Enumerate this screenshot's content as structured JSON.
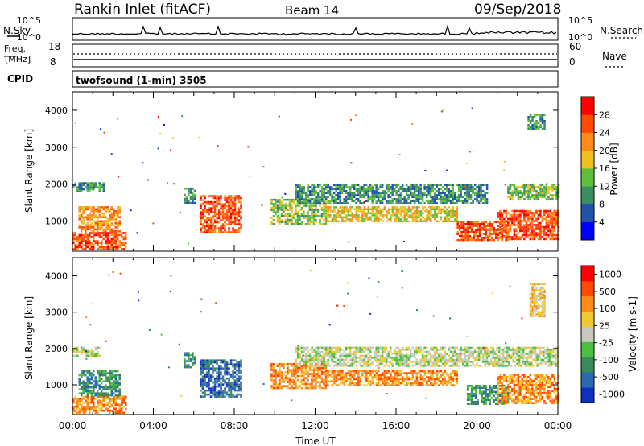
{
  "header": {
    "title": "Rankin Inlet (fitACF)",
    "beam": "Beam 14",
    "date": "09/Sep/2018"
  },
  "strip_panels": {
    "nsky_label": "N.Sky",
    "nsky_ticks": [
      "10^5",
      "10^0"
    ],
    "nsearch_label": "N.Search",
    "nsearch_ticks": [
      "10^5",
      "10^0"
    ],
    "freq_label_top": "Freq.",
    "freq_label_unit": "[MHz]",
    "freq_ticks": [
      "18",
      "8"
    ],
    "nave_label": "Nave",
    "nave_ticks": [
      "60",
      "0"
    ],
    "cpid_label": "CPID",
    "cpid_text": "twofsound (1-min) 3505"
  },
  "chart_data": [
    {
      "type": "heatmap",
      "name": "power",
      "ylabel": "Slant Range [km]",
      "ylim": [
        180,
        4500
      ],
      "yticks": [
        "1000",
        "2000",
        "3000",
        "4000"
      ],
      "xlim": [
        0,
        24
      ],
      "colorbar_label": "Power [dB]",
      "colorbar_ticks": [
        "4",
        "8",
        "12",
        "16",
        "20",
        "24",
        "28"
      ],
      "colors": [
        "#0000ff",
        "#1f52a8",
        "#3a8f5e",
        "#5fbf3c",
        "#f0c020",
        "#ff8c1a",
        "#ff4a00",
        "#ff0000"
      ],
      "echo_regions": [
        {
          "t0": 0.0,
          "t1": 2.6,
          "r0": 230,
          "r1": 700,
          "level": 6
        },
        {
          "t0": 0.3,
          "t1": 2.3,
          "r0": 700,
          "r1": 1400,
          "level": 5
        },
        {
          "t0": 0.0,
          "t1": 1.5,
          "r0": 1800,
          "r1": 2050,
          "level": 2
        },
        {
          "t0": 5.5,
          "t1": 6.0,
          "r0": 1500,
          "r1": 1900,
          "level": 2
        },
        {
          "t0": 6.3,
          "t1": 8.3,
          "r0": 700,
          "r1": 1700,
          "level": 6
        },
        {
          "t0": 9.8,
          "t1": 12.5,
          "r0": 900,
          "r1": 1600,
          "level": 3
        },
        {
          "t0": 11.0,
          "t1": 20.5,
          "r0": 1500,
          "r1": 2000,
          "level": 2
        },
        {
          "t0": 12.5,
          "t1": 19.0,
          "r0": 1000,
          "r1": 1400,
          "level": 4
        },
        {
          "t0": 19.0,
          "t1": 21.5,
          "r0": 500,
          "r1": 1000,
          "level": 6
        },
        {
          "t0": 21.0,
          "t1": 24.0,
          "r0": 500,
          "r1": 1300,
          "level": 6
        },
        {
          "t0": 21.5,
          "t1": 24.0,
          "r0": 1600,
          "r1": 2000,
          "level": 3
        },
        {
          "t0": 22.5,
          "t1": 23.3,
          "r0": 3500,
          "r1": 3900,
          "level": 2
        }
      ]
    },
    {
      "type": "heatmap",
      "name": "velocity",
      "ylabel": "Slant Range [km]",
      "ylim": [
        180,
        4500
      ],
      "yticks": [
        "1000",
        "2000",
        "3000",
        "4000"
      ],
      "xlim": [
        0,
        24
      ],
      "xticks": [
        "00:00",
        "04:00",
        "08:00",
        "12:00",
        "16:00",
        "20:00",
        "00:00"
      ],
      "xlabel": "Time UT",
      "colorbar_label": "Velocity [m s-1]",
      "colorbar_ticks": [
        "1000",
        "500",
        "100",
        "25",
        "-25",
        "-100",
        "-500",
        "-1000"
      ],
      "colors": [
        "#1030c0",
        "#2a6ab0",
        "#3a8a5a",
        "#4cc040",
        "#c8c8c0",
        "#f0c830",
        "#ff8c1a",
        "#ff4a00",
        "#ff0000"
      ],
      "echo_regions": [
        {
          "t0": 0.0,
          "t1": 2.6,
          "r0": 230,
          "r1": 700,
          "level": 6
        },
        {
          "t0": 0.3,
          "t1": 2.3,
          "r0": 700,
          "r1": 1400,
          "level": 2
        },
        {
          "t0": 0.0,
          "t1": 1.3,
          "r0": 1800,
          "r1": 2050,
          "level": 4
        },
        {
          "t0": 5.5,
          "t1": 6.0,
          "r0": 1500,
          "r1": 1900,
          "level": 2
        },
        {
          "t0": 6.3,
          "t1": 8.3,
          "r0": 700,
          "r1": 1700,
          "level": 1
        },
        {
          "t0": 9.8,
          "t1": 12.5,
          "r0": 900,
          "r1": 1600,
          "level": 6
        },
        {
          "t0": 11.0,
          "t1": 24.0,
          "r0": 1500,
          "r1": 2050,
          "level": 4
        },
        {
          "t0": 12.5,
          "t1": 19.0,
          "r0": 1000,
          "r1": 1400,
          "level": 6
        },
        {
          "t0": 19.5,
          "t1": 21.5,
          "r0": 500,
          "r1": 1000,
          "level": 2
        },
        {
          "t0": 21.0,
          "t1": 24.0,
          "r0": 500,
          "r1": 1300,
          "level": 6
        },
        {
          "t0": 22.6,
          "t1": 23.3,
          "r0": 2900,
          "r1": 3800,
          "level": 5
        }
      ]
    }
  ]
}
